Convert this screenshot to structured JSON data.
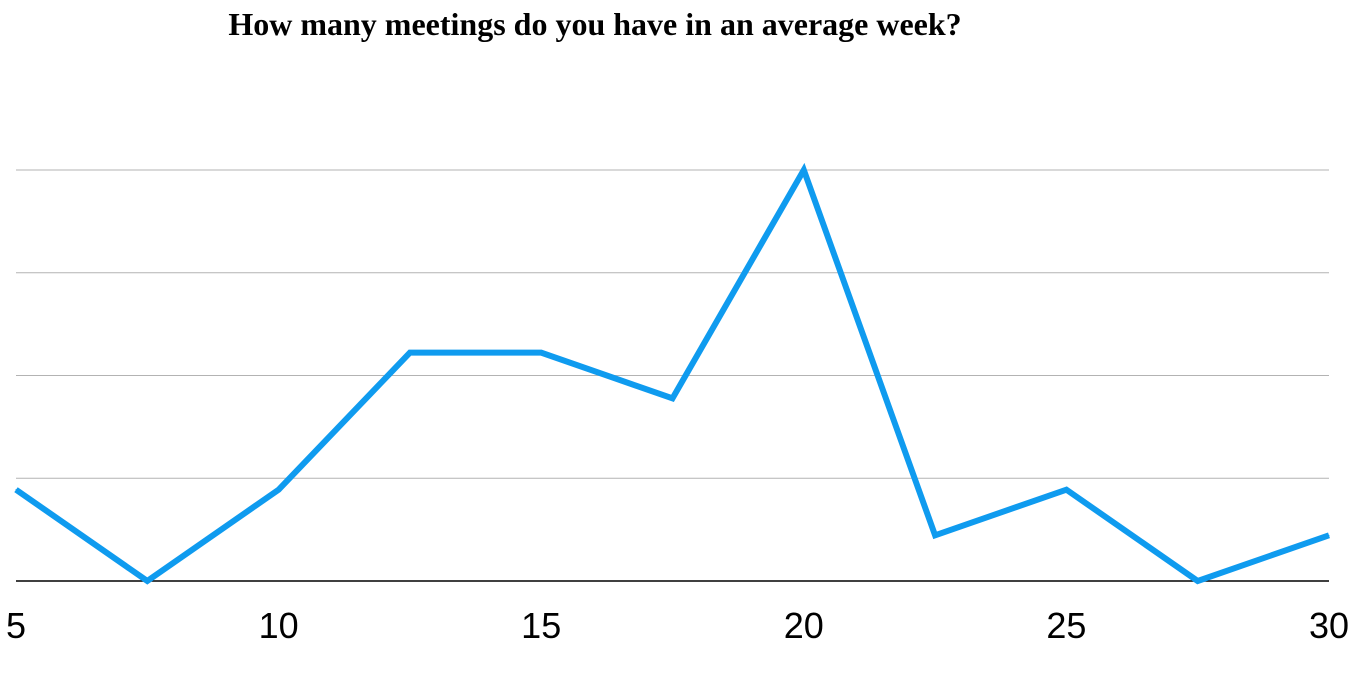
{
  "chart_data": {
    "type": "line",
    "title": "How many meetings do you have in an average week?",
    "xlabel": "",
    "ylabel": "",
    "x": [
      5,
      7.5,
      10,
      12.5,
      15,
      17.5,
      20,
      22.5,
      25,
      27.5,
      30
    ],
    "series": [
      {
        "values": [
          2,
          0,
          2,
          5,
          5,
          4,
          9,
          1,
          2,
          0,
          1
        ]
      }
    ],
    "x_ticks": [
      "5",
      "10",
      "15",
      "20",
      "25",
      "30"
    ],
    "xlim": [
      5,
      30
    ],
    "ylim": [
      0,
      9
    ],
    "y_gridlines": [
      2.25,
      4.5,
      6.75,
      9
    ],
    "grid": "horizontal",
    "y_tick_labels_shown": false,
    "legend": "none",
    "colors": {
      "line": "#0f9bef",
      "grid": "#b3b3b3",
      "axis": "#000000"
    }
  }
}
